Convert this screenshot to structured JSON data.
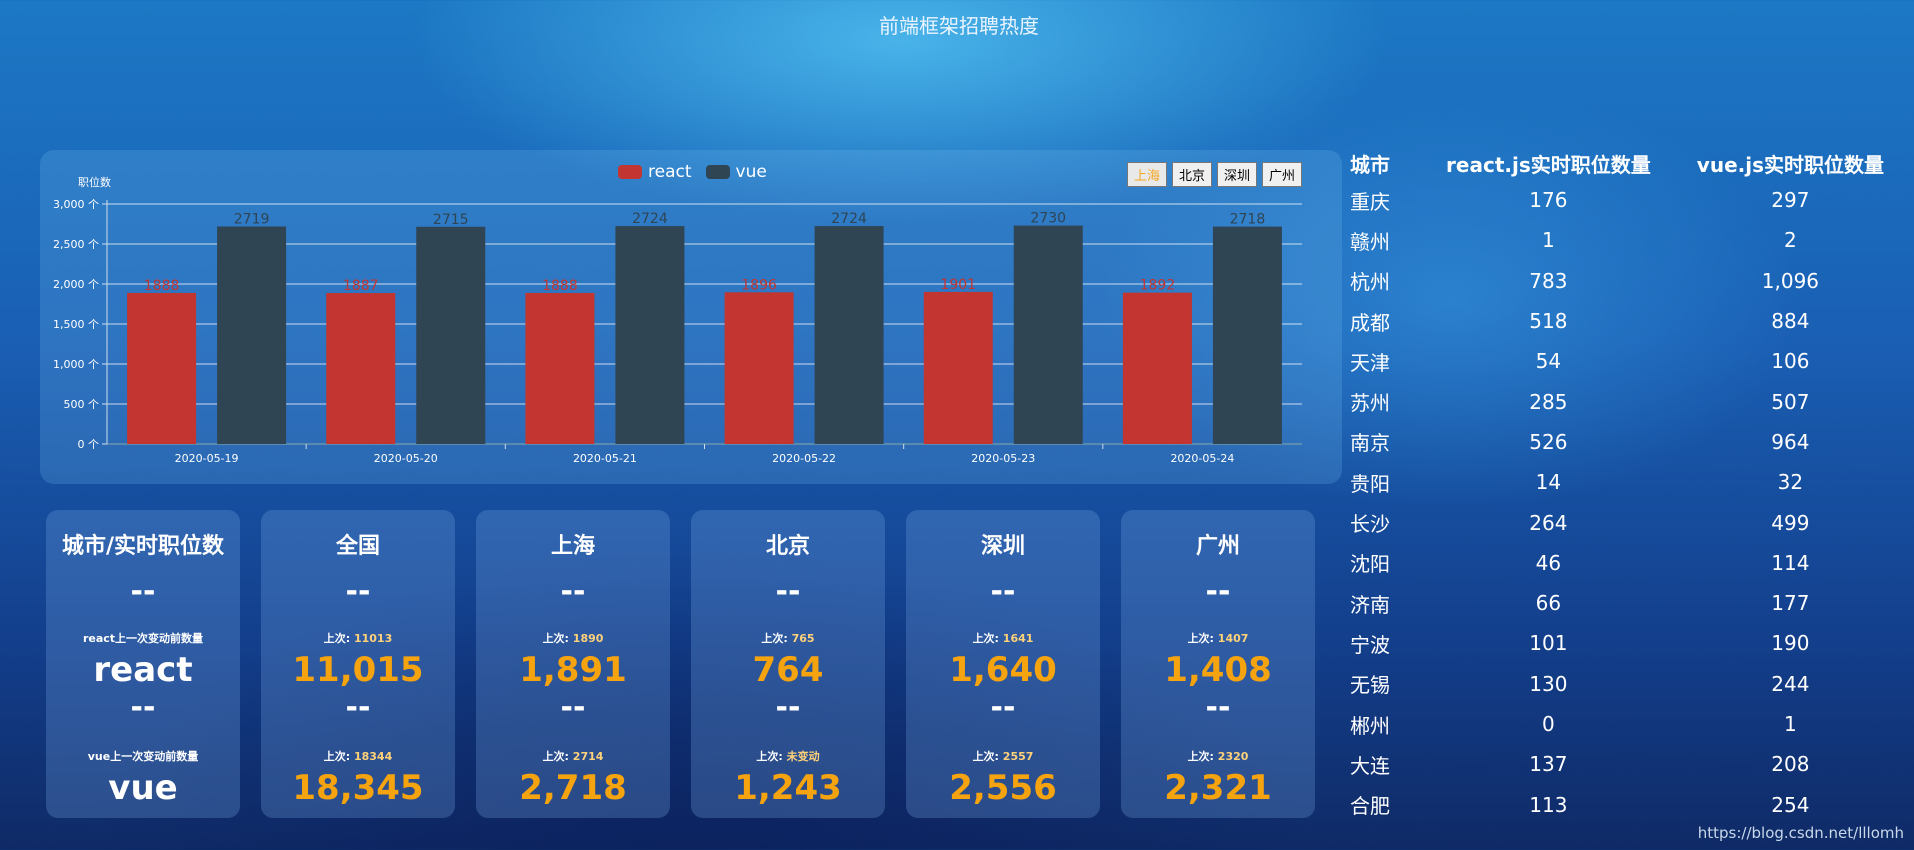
{
  "page": {
    "title": "前端框架招聘热度",
    "watermark": "https://blog.csdn.net/lllomh"
  },
  "chart_controls": {
    "buttons": [
      "上海",
      "北京",
      "深圳",
      "广州"
    ],
    "active": "上海"
  },
  "chart_data": {
    "type": "bar",
    "title": "",
    "ylabel": "职位数",
    "xlabel": "",
    "categories": [
      "2020-05-19",
      "2020-05-20",
      "2020-05-21",
      "2020-05-22",
      "2020-05-23",
      "2020-05-24"
    ],
    "series": [
      {
        "name": "react",
        "values": [
          1888,
          1887,
          1888,
          1896,
          1901,
          1892
        ],
        "color": "#c23531"
      },
      {
        "name": "vue",
        "values": [
          2719,
          2715,
          2724,
          2724,
          2730,
          2718
        ],
        "color": "#2f4554"
      }
    ],
    "ylim": [
      0,
      3000
    ],
    "yticks": [
      0,
      500,
      1000,
      1500,
      2000,
      2500,
      3000
    ],
    "ytick_labels": [
      "0 个",
      "500 个",
      "1,000 个",
      "1,500 个",
      "2,000 个",
      "2,500 个",
      "3,000 个"
    ],
    "grid": true,
    "legend_position": "top-center"
  },
  "cards": {
    "label_card": {
      "title": "城市/实时职位数",
      "dash1": "--",
      "react_prev_label": "react上一次变动前数量",
      "react_label": "react",
      "dash2": "--",
      "vue_prev_label": "vue上一次变动前数量",
      "vue_label": "vue"
    },
    "prev_prefix": "上次: ",
    "items": [
      {
        "title": "全国",
        "dash1": "--",
        "react_prev": "11013",
        "react": "11,015",
        "dash2": "--",
        "vue_prev": "18344",
        "vue": "18,345"
      },
      {
        "title": "上海",
        "dash1": "--",
        "react_prev": "1890",
        "react": "1,891",
        "dash2": "--",
        "vue_prev": "2714",
        "vue": "2,718"
      },
      {
        "title": "北京",
        "dash1": "--",
        "react_prev": "765",
        "react": "764",
        "dash2": "--",
        "vue_prev": "未变动",
        "vue": "1,243"
      },
      {
        "title": "深圳",
        "dash1": "--",
        "react_prev": "1641",
        "react": "1,640",
        "dash2": "--",
        "vue_prev": "2557",
        "vue": "2,556"
      },
      {
        "title": "广州",
        "dash1": "--",
        "react_prev": "1407",
        "react": "1,408",
        "dash2": "--",
        "vue_prev": "2320",
        "vue": "2,321"
      }
    ]
  },
  "city_table": {
    "headers": [
      "城市",
      "react.js实时职位数量",
      "vue.js实时职位数量"
    ],
    "rows": [
      [
        "重庆",
        "176",
        "297"
      ],
      [
        "赣州",
        "1",
        "2"
      ],
      [
        "杭州",
        "783",
        "1,096"
      ],
      [
        "成都",
        "518",
        "884"
      ],
      [
        "天津",
        "54",
        "106"
      ],
      [
        "苏州",
        "285",
        "507"
      ],
      [
        "南京",
        "526",
        "964"
      ],
      [
        "贵阳",
        "14",
        "32"
      ],
      [
        "长沙",
        "264",
        "499"
      ],
      [
        "沈阳",
        "46",
        "114"
      ],
      [
        "济南",
        "66",
        "177"
      ],
      [
        "宁波",
        "101",
        "190"
      ],
      [
        "无锡",
        "130",
        "244"
      ],
      [
        "郴州",
        "0",
        "1"
      ],
      [
        "大连",
        "137",
        "208"
      ],
      [
        "合肥",
        "113",
        "254"
      ]
    ]
  }
}
